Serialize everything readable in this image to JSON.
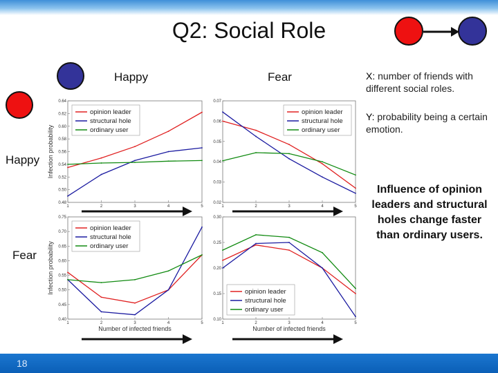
{
  "slide": {
    "title": "Q2: Social Role",
    "page_number": "18",
    "column_labels": [
      "Happy",
      "Fear"
    ],
    "row_labels": [
      "Happy",
      "Fear"
    ],
    "x_note_key": "X:",
    "x_note_text": " number of friends with different social roles.",
    "y_note_key": "Y:",
    "y_note_text": " probability being a certain emotion.",
    "conclusion": "Influence of opinion leaders and structural holes change faster than ordinary users.",
    "colors": {
      "red_node": "#ee1111",
      "blue_node": "#333399",
      "opinion_leader": "#e02020",
      "structural_hole": "#1a1aa0",
      "ordinary_user": "#108a10"
    }
  },
  "chart_data": [
    {
      "type": "line",
      "position": "top-left",
      "x": [
        1,
        2,
        3,
        4,
        5
      ],
      "xlabel": "",
      "ylabel": "Infection probability",
      "ylim": [
        0.48,
        0.64
      ],
      "yticks": [
        "0.48",
        "0.50",
        "0.52",
        "0.54",
        "0.56",
        "0.58",
        "0.60",
        "0.62",
        "0.64"
      ],
      "xticks": [
        "1",
        "2",
        "3",
        "4",
        "5"
      ],
      "legend_position": "top-left",
      "series": [
        {
          "name": "opinion leader",
          "color": "#e02020",
          "values": [
            0.535,
            0.55,
            0.568,
            0.592,
            0.622
          ]
        },
        {
          "name": "structural hole",
          "color": "#1a1aa0",
          "values": [
            0.49,
            0.524,
            0.546,
            0.56,
            0.566
          ]
        },
        {
          "name": "ordinary user",
          "color": "#108a10",
          "values": [
            0.54,
            0.542,
            0.543,
            0.545,
            0.546
          ]
        }
      ]
    },
    {
      "type": "line",
      "position": "top-right",
      "x": [
        1,
        2,
        3,
        4,
        5
      ],
      "xlabel": "",
      "ylabel": "",
      "ylim": [
        0.02,
        0.07
      ],
      "yticks": [
        "0.02",
        "0.03",
        "0.04",
        "0.05",
        "0.06",
        "0.07"
      ],
      "xticks": [
        "1",
        "2",
        "3",
        "4",
        "5"
      ],
      "legend_position": "top-right",
      "series": [
        {
          "name": "opinion leader",
          "color": "#e02020",
          "values": [
            0.06,
            0.0555,
            0.0485,
            0.039,
            0.027
          ]
        },
        {
          "name": "structural hole",
          "color": "#1a1aa0",
          "values": [
            0.0645,
            0.0525,
            0.0415,
            0.0325,
            0.0245
          ]
        },
        {
          "name": "ordinary user",
          "color": "#108a10",
          "values": [
            0.0405,
            0.0445,
            0.044,
            0.04,
            0.0335
          ]
        }
      ]
    },
    {
      "type": "line",
      "position": "bottom-left",
      "x": [
        1,
        2,
        3,
        4,
        5
      ],
      "xlabel": "Number of infected friends",
      "ylabel": "Infection probability",
      "ylim": [
        0.4,
        0.75
      ],
      "yticks": [
        "0.40",
        "0.45",
        "0.50",
        "0.55",
        "0.60",
        "0.65",
        "0.70",
        "0.75"
      ],
      "xticks": [
        "1",
        "2",
        "3",
        "4",
        "5"
      ],
      "legend_position": "top-left",
      "series": [
        {
          "name": "opinion leader",
          "color": "#e02020",
          "values": [
            0.56,
            0.475,
            0.455,
            0.5,
            0.62
          ]
        },
        {
          "name": "structural hole",
          "color": "#1a1aa0",
          "values": [
            0.535,
            0.425,
            0.415,
            0.5,
            0.715
          ]
        },
        {
          "name": "ordinary user",
          "color": "#108a10",
          "values": [
            0.535,
            0.525,
            0.535,
            0.565,
            0.62
          ]
        }
      ]
    },
    {
      "type": "line",
      "position": "bottom-right",
      "x": [
        1,
        2,
        3,
        4,
        5
      ],
      "xlabel": "Number of infected friends",
      "ylabel": "",
      "ylim": [
        0.1,
        0.3
      ],
      "yticks": [
        "0.10",
        "0.15",
        "0.20",
        "0.25",
        "0.30"
      ],
      "xticks": [
        "1",
        "2",
        "3",
        "4",
        "5"
      ],
      "legend_position": "bottom-left",
      "series": [
        {
          "name": "opinion leader",
          "color": "#e02020",
          "values": [
            0.215,
            0.245,
            0.235,
            0.2,
            0.15
          ]
        },
        {
          "name": "structural hole",
          "color": "#1a1aa0",
          "values": [
            0.2,
            0.248,
            0.25,
            0.2,
            0.105
          ]
        },
        {
          "name": "ordinary user",
          "color": "#108a10",
          "values": [
            0.235,
            0.265,
            0.26,
            0.23,
            0.16
          ]
        }
      ]
    }
  ]
}
